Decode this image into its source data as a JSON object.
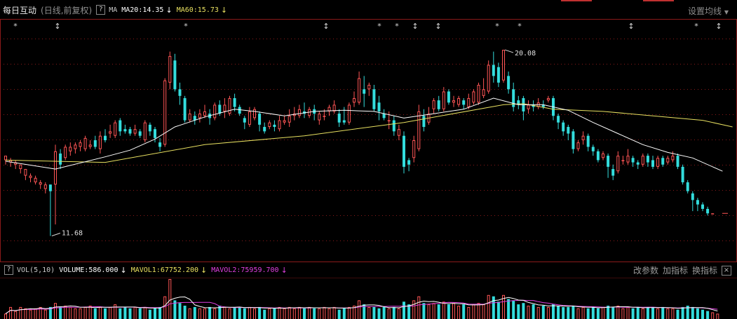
{
  "header": {
    "stock_name": "每日互动",
    "subtitle": "(日线,前复权)",
    "help": "?",
    "ma_label": "MA",
    "ma20": "MA20:14.35",
    "ma60": "MA60:15.73",
    "settings": "设置均线"
  },
  "volume_header": {
    "help": "?",
    "vol_label": "VOL(5,10)",
    "volume": "VOLUME:586.000",
    "mavol1": "MAVOL1:67752.200",
    "mavol2": "MAVOL2:75959.700",
    "buttons": [
      "改参数",
      "加指标",
      "换指标"
    ],
    "close": "×"
  },
  "colors": {
    "up": "#ff5555",
    "down": "#33dddd",
    "ma20": "#ffffff",
    "ma60": "#e8e060",
    "mavol1": "#ffffff",
    "mavol2": "#e040e0",
    "grid": "#8b1a1a"
  },
  "chart_data": {
    "type": "candlestick",
    "price_ylim": [
      11.0,
      21.0
    ],
    "annotations": [
      {
        "label": "20.08",
        "value": 20.08
      },
      {
        "label": "11.68",
        "value": 11.68
      }
    ],
    "event_markers": [
      "*",
      "↕",
      "*",
      "↕",
      "*",
      "*",
      "↕",
      "↕",
      "*",
      "*",
      "↕",
      "*",
      "↕"
    ],
    "candles": [
      [
        15.1,
        15.3,
        15.2,
        14.9
      ],
      [
        15.0,
        15.1,
        15.2,
        14.8
      ],
      [
        14.9,
        15.0,
        15.1,
        14.7
      ],
      [
        14.7,
        14.9,
        14.9,
        14.5
      ],
      [
        14.4,
        14.7,
        14.7,
        14.2
      ],
      [
        14.3,
        14.4,
        14.5,
        14.1
      ],
      [
        14.1,
        14.3,
        14.4,
        14.0
      ],
      [
        14.0,
        14.1,
        14.2,
        13.8
      ],
      [
        13.8,
        14.0,
        14.1,
        13.6
      ],
      [
        14.0,
        13.7,
        14.0,
        11.68
      ],
      [
        14.0,
        15.5,
        15.8,
        12.2
      ],
      [
        15.4,
        14.9,
        15.6,
        14.7
      ],
      [
        15.2,
        15.7,
        15.8,
        15.1
      ],
      [
        15.5,
        15.7,
        15.9,
        15.3
      ],
      [
        15.6,
        15.8,
        15.9,
        15.4
      ],
      [
        15.7,
        15.9,
        16.0,
        15.5
      ],
      [
        15.6,
        16.1,
        16.2,
        15.5
      ],
      [
        15.7,
        15.8,
        16.0,
        15.6
      ],
      [
        16.0,
        15.7,
        16.2,
        15.6
      ],
      [
        15.6,
        16.2,
        16.4,
        15.4
      ],
      [
        16.2,
        16.0,
        16.5,
        15.9
      ],
      [
        16.3,
        16.4,
        16.7,
        16.1
      ],
      [
        16.2,
        16.8,
        16.9,
        16.1
      ],
      [
        16.9,
        16.4,
        17.0,
        16.2
      ],
      [
        16.5,
        16.4,
        16.7,
        16.3
      ],
      [
        16.5,
        16.3,
        16.6,
        16.2
      ],
      [
        16.3,
        16.5,
        16.7,
        16.2
      ],
      [
        16.4,
        16.2,
        16.5,
        16.1
      ],
      [
        16.0,
        16.8,
        16.9,
        15.9
      ],
      [
        16.7,
        16.4,
        16.8,
        16.2
      ],
      [
        16.5,
        16.1,
        16.6,
        15.9
      ],
      [
        15.9,
        15.7,
        16.1,
        15.5
      ],
      [
        15.8,
        18.7,
        18.8,
        15.7
      ],
      [
        18.6,
        19.8,
        20.0,
        18.3
      ],
      [
        19.6,
        18.3,
        19.9,
        18.2
      ],
      [
        18.3,
        18.0,
        18.6,
        17.6
      ],
      [
        17.9,
        16.9,
        18.0,
        16.8
      ],
      [
        16.9,
        17.2,
        17.4,
        16.8
      ],
      [
        17.1,
        16.9,
        17.3,
        16.7
      ],
      [
        17.0,
        17.2,
        17.4,
        16.8
      ],
      [
        17.1,
        17.3,
        17.6,
        17.0
      ],
      [
        17.2,
        17.0,
        17.4,
        16.7
      ],
      [
        17.0,
        17.6,
        17.7,
        16.9
      ],
      [
        17.6,
        17.2,
        17.8,
        17.1
      ],
      [
        17.3,
        17.6,
        17.9,
        17.0
      ],
      [
        17.2,
        17.9,
        18.0,
        17.1
      ],
      [
        17.9,
        17.5,
        18.1,
        17.3
      ],
      [
        17.5,
        17.2,
        17.6,
        17.1
      ],
      [
        17.0,
        16.8,
        17.1,
        16.5
      ],
      [
        16.7,
        17.3,
        17.5,
        16.6
      ],
      [
        17.0,
        17.4,
        17.5,
        16.9
      ],
      [
        17.2,
        16.7,
        17.3,
        16.4
      ],
      [
        16.6,
        16.4,
        16.8,
        16.3
      ],
      [
        16.6,
        16.8,
        16.9,
        16.5
      ],
      [
        16.7,
        16.6,
        16.9,
        16.4
      ],
      [
        16.5,
        16.9,
        17.1,
        16.4
      ],
      [
        16.8,
        16.9,
        17.1,
        16.7
      ],
      [
        16.8,
        17.1,
        17.4,
        16.6
      ],
      [
        17.1,
        17.2,
        17.5,
        16.9
      ],
      [
        17.1,
        17.4,
        17.6,
        17.0
      ],
      [
        17.3,
        17.2,
        17.7,
        17.0
      ],
      [
        17.1,
        17.4,
        17.5,
        17.0
      ],
      [
        17.4,
        17.2,
        17.6,
        16.9
      ],
      [
        16.9,
        17.2,
        17.3,
        16.7
      ],
      [
        17.1,
        17.1,
        17.4,
        16.9
      ],
      [
        17.3,
        17.5,
        17.6,
        17.1
      ],
      [
        17.3,
        17.6,
        17.8,
        17.2
      ],
      [
        17.2,
        16.8,
        17.4,
        16.6
      ],
      [
        16.9,
        16.8,
        17.5,
        16.7
      ],
      [
        16.8,
        17.6,
        17.7,
        16.7
      ],
      [
        17.7,
        17.9,
        18.2,
        17.5
      ],
      [
        17.7,
        18.8,
        19.1,
        17.6
      ],
      [
        18.3,
        18.1,
        18.9,
        17.5
      ],
      [
        18.3,
        18.5,
        18.6,
        18.0
      ],
      [
        18.3,
        17.4,
        18.5,
        17.3
      ],
      [
        17.7,
        17.3,
        18.0,
        16.9
      ],
      [
        17.2,
        17.0,
        17.4,
        16.9
      ],
      [
        16.9,
        16.9,
        17.3,
        16.5
      ],
      [
        16.9,
        16.4,
        17.1,
        16.2
      ],
      [
        16.2,
        16.5,
        16.7,
        16.0
      ],
      [
        16.2,
        14.8,
        16.4,
        14.5
      ],
      [
        15.1,
        14.9,
        15.2,
        14.6
      ],
      [
        15.2,
        16.0,
        16.2,
        15.0
      ],
      [
        15.6,
        17.3,
        17.6,
        15.5
      ],
      [
        17.1,
        16.6,
        17.4,
        16.4
      ],
      [
        16.8,
        17.2,
        17.5,
        16.7
      ],
      [
        17.4,
        17.8,
        17.9,
        17.2
      ],
      [
        17.8,
        17.4,
        18.0,
        17.3
      ],
      [
        17.4,
        18.2,
        18.4,
        17.3
      ],
      [
        18.2,
        17.7,
        18.3,
        17.6
      ],
      [
        17.7,
        17.8,
        18.0,
        17.5
      ],
      [
        17.6,
        17.9,
        18.0,
        17.5
      ],
      [
        17.8,
        17.6,
        17.9,
        17.4
      ],
      [
        17.5,
        17.9,
        18.1,
        17.4
      ],
      [
        17.7,
        18.2,
        18.3,
        17.6
      ],
      [
        17.7,
        18.5,
        18.6,
        17.6
      ],
      [
        18.0,
        18.3,
        18.8,
        17.9
      ],
      [
        18.2,
        19.4,
        19.6,
        18.1
      ],
      [
        19.4,
        18.9,
        20.0,
        18.6
      ],
      [
        19.3,
        18.6,
        19.5,
        18.4
      ],
      [
        18.7,
        20.08,
        20.08,
        18.6
      ],
      [
        18.9,
        18.3,
        19.1,
        18.1
      ],
      [
        18.3,
        17.5,
        18.6,
        17.3
      ],
      [
        17.8,
        17.6,
        18.0,
        17.4
      ],
      [
        17.9,
        17.3,
        18.0,
        16.9
      ],
      [
        17.4,
        17.6,
        17.8,
        17.2
      ],
      [
        17.6,
        17.5,
        17.8,
        17.3
      ],
      [
        17.5,
        17.7,
        17.9,
        17.4
      ],
      [
        17.6,
        17.5,
        17.8,
        17.4
      ],
      [
        17.8,
        17.9,
        18.0,
        17.7
      ],
      [
        17.9,
        17.1,
        18.0,
        16.9
      ],
      [
        17.1,
        16.8,
        17.2,
        16.5
      ],
      [
        16.8,
        16.4,
        16.9,
        16.2
      ],
      [
        16.6,
        16.3,
        16.7,
        16.0
      ],
      [
        16.4,
        15.6,
        16.5,
        15.4
      ],
      [
        15.6,
        15.9,
        16.0,
        15.5
      ],
      [
        16.0,
        16.2,
        16.4,
        15.8
      ],
      [
        16.2,
        15.7,
        16.3,
        15.5
      ],
      [
        15.7,
        15.5,
        15.8,
        15.3
      ],
      [
        15.5,
        15.1,
        15.6,
        15.0
      ],
      [
        15.2,
        15.4,
        15.5,
        15.1
      ],
      [
        15.3,
        14.8,
        15.4,
        14.3
      ],
      [
        14.7,
        14.4,
        14.9,
        14.2
      ],
      [
        14.6,
        15.3,
        15.5,
        14.5
      ],
      [
        15.1,
        15.1,
        15.3,
        14.9
      ],
      [
        15.0,
        15.3,
        15.6,
        14.9
      ],
      [
        15.2,
        15.0,
        15.3,
        14.8
      ],
      [
        15.0,
        14.9,
        15.1,
        14.7
      ],
      [
        14.9,
        15.3,
        15.4,
        14.8
      ],
      [
        15.3,
        15.0,
        15.4,
        14.8
      ],
      [
        15.1,
        14.8,
        15.3,
        14.7
      ],
      [
        14.8,
        15.2,
        15.3,
        14.7
      ],
      [
        15.2,
        14.9,
        15.3,
        14.8
      ],
      [
        15.0,
        15.2,
        15.3,
        14.9
      ],
      [
        15.1,
        15.3,
        15.5,
        15.0
      ],
      [
        15.3,
        14.8,
        15.4,
        14.7
      ],
      [
        14.8,
        14.1,
        14.9,
        14.0
      ],
      [
        14.1,
        13.7,
        14.2,
        13.6
      ],
      [
        13.6,
        13.3,
        13.7,
        12.8
      ],
      [
        13.3,
        13.1,
        13.4,
        12.8
      ],
      [
        13.1,
        12.9,
        13.2,
        12.8
      ],
      [
        12.9,
        12.7,
        13.0,
        12.6
      ],
      [
        12.7,
        12.7,
        12.7,
        12.7
      ]
    ],
    "ma20_line": [
      [
        0,
        15.05
      ],
      [
        10,
        14.7
      ],
      [
        20,
        15.25
      ],
      [
        25,
        15.55
      ],
      [
        30,
        16.05
      ],
      [
        34,
        16.6
      ],
      [
        40,
        17.05
      ],
      [
        46,
        17.4
      ],
      [
        50,
        17.3
      ],
      [
        56,
        17.1
      ],
      [
        62,
        17.3
      ],
      [
        68,
        17.35
      ],
      [
        74,
        17.3
      ],
      [
        80,
        17.0
      ],
      [
        86,
        17.2
      ],
      [
        92,
        17.4
      ],
      [
        98,
        17.9
      ],
      [
        103,
        17.6
      ],
      [
        108,
        17.6
      ],
      [
        113,
        17.35
      ],
      [
        118,
        16.8
      ],
      [
        123,
        16.3
      ],
      [
        128,
        15.8
      ],
      [
        133,
        15.45
      ],
      [
        138,
        15.2
      ],
      [
        144,
        14.6
      ]
    ],
    "ma60_line": [
      [
        0,
        15.1
      ],
      [
        20,
        15.0
      ],
      [
        40,
        15.8
      ],
      [
        60,
        16.2
      ],
      [
        80,
        16.8
      ],
      [
        100,
        17.6
      ],
      [
        104,
        17.65
      ],
      [
        110,
        17.4
      ],
      [
        120,
        17.3
      ],
      [
        130,
        17.1
      ],
      [
        140,
        16.9
      ],
      [
        146,
        16.6
      ]
    ],
    "volume": [
      {
        "v": [
          4,
          9,
          6,
          9,
          8,
          7,
          8,
          9,
          7,
          9,
          12,
          9,
          10,
          9,
          8,
          8,
          9,
          10,
          8,
          9,
          8,
          9,
          11,
          8,
          9,
          8,
          9,
          8,
          9,
          7,
          8,
          9,
          17,
          30,
          14,
          12,
          10,
          8,
          9,
          8,
          8,
          9,
          8,
          10,
          9,
          8,
          9,
          9,
          8,
          9,
          8,
          9,
          7,
          8,
          8,
          9,
          8,
          9,
          8,
          9,
          8,
          9,
          8,
          8,
          9,
          8,
          9,
          7,
          8,
          9,
          10,
          14,
          11,
          9,
          9,
          8,
          9,
          8,
          9,
          8,
          13,
          11,
          14,
          17,
          12,
          11,
          12,
          11,
          13,
          11,
          12,
          10,
          11,
          9,
          11,
          12,
          11,
          18,
          17,
          13,
          18,
          15,
          14,
          11,
          12,
          10,
          11,
          9,
          10,
          9,
          11,
          10,
          9,
          9,
          10,
          8,
          9,
          8,
          9,
          8,
          9,
          10,
          9,
          10,
          8,
          9,
          8,
          9,
          8,
          9,
          9,
          8,
          9,
          8,
          8,
          7,
          9,
          10,
          9,
          8,
          7,
          6,
          5,
          4
        ]
      }
    ]
  }
}
